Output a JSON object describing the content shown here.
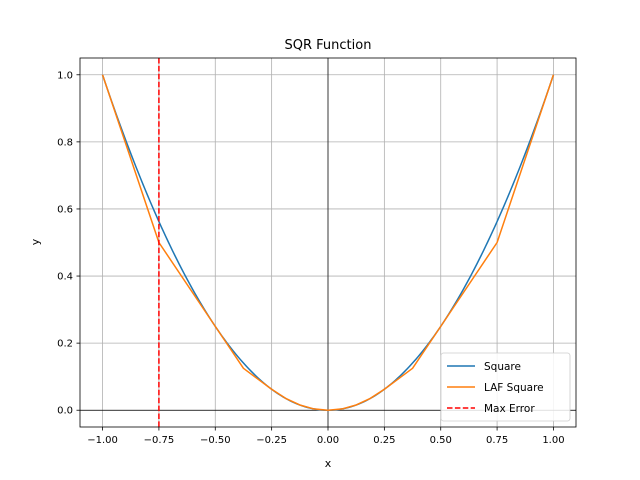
{
  "chart_data": {
    "type": "line",
    "title": "SQR Function",
    "xlabel": "x",
    "ylabel": "y",
    "xlim": [
      -1.1,
      1.1
    ],
    "ylim": [
      -0.05,
      1.05
    ],
    "grid": true,
    "legend_position": "lower-right",
    "x_ticks": [
      -1.0,
      -0.75,
      -0.5,
      -0.25,
      0.0,
      0.25,
      0.5,
      0.75,
      1.0
    ],
    "x_tick_labels": [
      "−1.00",
      "−0.75",
      "−0.50",
      "−0.25",
      "0.00",
      "0.25",
      "0.50",
      "0.75",
      "1.00"
    ],
    "y_ticks": [
      0.0,
      0.2,
      0.4,
      0.6,
      0.8,
      1.0
    ],
    "y_tick_labels": [
      "0.0",
      "0.2",
      "0.4",
      "0.6",
      "0.8",
      "1.0"
    ],
    "series": [
      {
        "name": "Square",
        "color": "#1f77b4",
        "style": "solid",
        "function": "x^2",
        "x_range": [
          -1.0,
          1.0
        ]
      },
      {
        "name": "LAF Square",
        "color": "#ff7f0e",
        "style": "solid",
        "x": [
          -1.0,
          -0.75,
          -0.5,
          -0.375,
          -0.25,
          -0.1875,
          -0.125,
          -0.0625,
          0.0,
          0.0625,
          0.125,
          0.1875,
          0.25,
          0.375,
          0.5,
          0.75,
          1.0
        ],
        "y": [
          1.0,
          0.5,
          0.25,
          0.125,
          0.0625,
          0.0352,
          0.0156,
          0.0039,
          0.0,
          0.0039,
          0.0156,
          0.0352,
          0.0625,
          0.125,
          0.25,
          0.5,
          1.0
        ]
      },
      {
        "name": "Max Error",
        "color": "#ff0000",
        "style": "dashed",
        "type": "vline",
        "x": -0.75
      }
    ]
  }
}
